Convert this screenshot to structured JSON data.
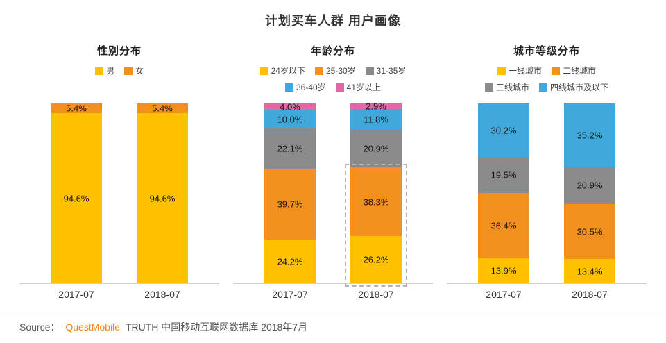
{
  "page": {
    "title": "计划买车人群 用户画像"
  },
  "footer": {
    "source_label": "Source：",
    "brand": "QuestMobile",
    "text": "TRUTH 中国移动互联网数据库 2018年7月"
  },
  "colors": {
    "yellow": "#FFC000",
    "orange": "#F2901E",
    "gray": "#8B8B8B",
    "blue": "#41A8DC",
    "pink": "#E068A4",
    "brand_orange": "#F6861F"
  },
  "chart_data": [
    {
      "type": "bar",
      "stacked": true,
      "title": "性别分布",
      "categories": [
        "2017-07",
        "2018-07"
      ],
      "series": [
        {
          "name": "男",
          "color": "#FFC000",
          "values": [
            94.6,
            94.6
          ]
        },
        {
          "name": "女",
          "color": "#F2901E",
          "values": [
            5.4,
            5.4
          ]
        }
      ],
      "value_suffix": "%",
      "ylim": [
        0,
        100
      ],
      "grid": false,
      "legend_position": "top"
    },
    {
      "type": "bar",
      "stacked": true,
      "title": "年龄分布",
      "categories": [
        "2017-07",
        "2018-07"
      ],
      "series": [
        {
          "name": "24岁以下",
          "color": "#FFC000",
          "values": [
            24.2,
            26.2
          ]
        },
        {
          "name": "25-30岁",
          "color": "#F2901E",
          "values": [
            39.7,
            38.3
          ]
        },
        {
          "name": "31-35岁",
          "color": "#8B8B8B",
          "values": [
            22.1,
            20.9
          ]
        },
        {
          "name": "36-40岁",
          "color": "#41A8DC",
          "values": [
            10.0,
            11.8
          ]
        },
        {
          "name": "41岁以上",
          "color": "#E068A4",
          "values": [
            4.0,
            2.9
          ]
        }
      ],
      "value_suffix": "%",
      "ylim": [
        0,
        100
      ],
      "grid": false,
      "legend_position": "top",
      "highlight": {
        "category_index": 1,
        "series_start": 0,
        "series_end": 1
      }
    },
    {
      "type": "bar",
      "stacked": true,
      "title": "城市等级分布",
      "categories": [
        "2017-07",
        "2018-07"
      ],
      "series": [
        {
          "name": "一线城市",
          "color": "#FFC000",
          "values": [
            13.9,
            13.4
          ]
        },
        {
          "name": "二线城市",
          "color": "#F2901E",
          "values": [
            36.4,
            30.5
          ]
        },
        {
          "name": "三线城市",
          "color": "#8B8B8B",
          "values": [
            19.5,
            20.9
          ]
        },
        {
          "name": "四线城市及以下",
          "color": "#41A8DC",
          "values": [
            30.2,
            35.2
          ]
        }
      ],
      "value_suffix": "%",
      "ylim": [
        0,
        100
      ],
      "grid": false,
      "legend_position": "top"
    }
  ]
}
